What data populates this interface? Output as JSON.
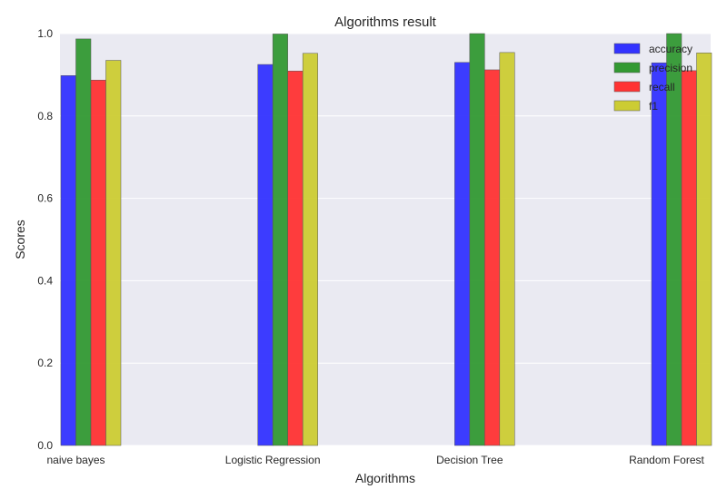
{
  "chart_data": {
    "type": "bar",
    "title": "Algorithms result",
    "xlabel": "Algorithms",
    "ylabel": "Scores",
    "ylim": [
      0,
      1.0
    ],
    "yticks": [
      "0.0",
      "0.2",
      "0.4",
      "0.6",
      "0.8",
      "1.0"
    ],
    "categories": [
      "naive bayes",
      "Logistic Regression",
      "Decision Tree",
      "Random Forest"
    ],
    "series": [
      {
        "name": "accuracy",
        "color": "#3333ff",
        "values": [
          0.898,
          0.925,
          0.93,
          0.929
        ]
      },
      {
        "name": "precision",
        "color": "#339933",
        "values": [
          0.987,
          0.999,
          1.0,
          1.0
        ]
      },
      {
        "name": "recall",
        "color": "#ff3333",
        "values": [
          0.887,
          0.909,
          0.912,
          0.91
        ]
      },
      {
        "name": "f1",
        "color": "#cccc33",
        "values": [
          0.935,
          0.952,
          0.954,
          0.953
        ]
      }
    ],
    "grid": true,
    "legend_position": "top-right"
  }
}
